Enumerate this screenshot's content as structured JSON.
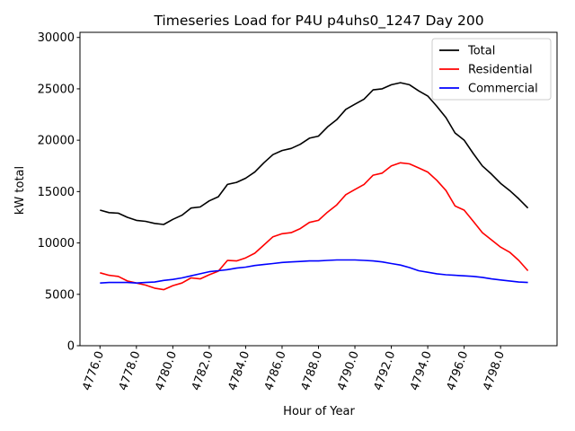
{
  "chart_data": {
    "type": "line",
    "title": "Timeseries Load for P4U p4uhs0_1247  Day 200",
    "xlabel": "Hour of Year",
    "ylabel": "kW total",
    "xlim": [
      4774.9,
      4801.1
    ],
    "ylim": [
      0,
      30500
    ],
    "xticks": [
      4776,
      4778,
      4780,
      4782,
      4784,
      4786,
      4788,
      4790,
      4792,
      4794,
      4796,
      4798
    ],
    "xtick_labels": [
      "4776.0",
      "4778.0",
      "4780.0",
      "4782.0",
      "4784.0",
      "4786.0",
      "4788.0",
      "4790.0",
      "4792.0",
      "4794.0",
      "4796.0",
      "4798.0"
    ],
    "yticks": [
      0,
      5000,
      10000,
      15000,
      20000,
      25000,
      30000
    ],
    "ytick_labels": [
      "0",
      "5000",
      "10000",
      "15000",
      "20000",
      "25000",
      "30000"
    ],
    "legend_position": "top-right",
    "grid": false,
    "x": [
      4776.0,
      4776.5,
      4777.0,
      4777.5,
      4778.0,
      4778.5,
      4779.0,
      4779.5,
      4780.0,
      4780.5,
      4781.0,
      4781.5,
      4782.0,
      4782.5,
      4783.0,
      4783.5,
      4784.0,
      4784.5,
      4785.0,
      4785.5,
      4786.0,
      4786.5,
      4787.0,
      4787.5,
      4788.0,
      4788.5,
      4789.0,
      4789.5,
      4790.0,
      4790.5,
      4791.0,
      4791.5,
      4792.0,
      4792.5,
      4793.0,
      4793.5,
      4794.0,
      4794.5,
      4795.0,
      4795.5,
      4796.0,
      4796.5,
      4797.0,
      4797.5,
      4798.0,
      4798.5,
      4799.0,
      4799.5
    ],
    "series": [
      {
        "name": "Total",
        "color": "#000000",
        "values": [
          13200,
          12950,
          12900,
          12500,
          12200,
          12100,
          11900,
          11800,
          12300,
          12700,
          13400,
          13500,
          14100,
          14500,
          15700,
          15900,
          16300,
          16900,
          17800,
          18600,
          19000,
          19200,
          19600,
          20200,
          20400,
          21300,
          22000,
          23000,
          23500,
          24000,
          24900,
          25000,
          25400,
          25600,
          25400,
          24800,
          24300,
          23300,
          22200,
          20700,
          20000,
          18700,
          17500,
          16700,
          15800,
          15100,
          14300,
          13400
        ]
      },
      {
        "name": "Residential",
        "color": "#ff0000",
        "values": [
          7100,
          6850,
          6750,
          6300,
          6100,
          5900,
          5600,
          5450,
          5850,
          6100,
          6600,
          6500,
          6900,
          7250,
          8300,
          8250,
          8550,
          9000,
          9800,
          10600,
          10900,
          11000,
          11400,
          12000,
          12200,
          13000,
          13700,
          14700,
          15200,
          15700,
          16600,
          16800,
          17500,
          17800,
          17700,
          17300,
          16900,
          16100,
          15100,
          13600,
          13200,
          12100,
          11000,
          10300,
          9600,
          9100,
          8300,
          7300
        ]
      },
      {
        "name": "Commercial",
        "color": "#0000ff",
        "values": [
          6100,
          6150,
          6150,
          6150,
          6100,
          6150,
          6200,
          6350,
          6450,
          6600,
          6800,
          7000,
          7200,
          7300,
          7400,
          7550,
          7650,
          7800,
          7900,
          8000,
          8100,
          8150,
          8200,
          8250,
          8250,
          8300,
          8350,
          8350,
          8350,
          8300,
          8250,
          8150,
          8000,
          7850,
          7600,
          7300,
          7150,
          7000,
          6900,
          6850,
          6800,
          6750,
          6650,
          6500,
          6400,
          6300,
          6200,
          6150
        ]
      }
    ]
  }
}
